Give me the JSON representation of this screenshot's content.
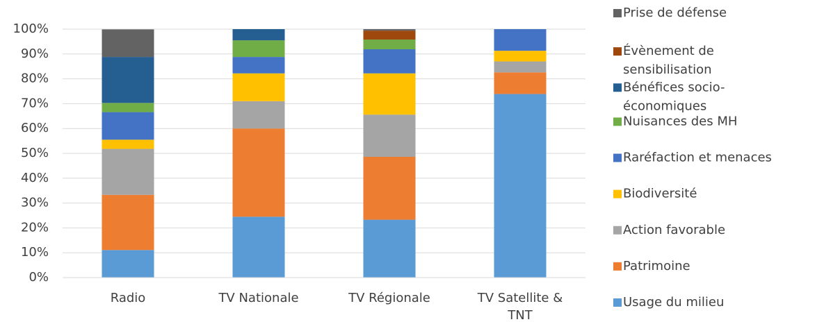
{
  "chart_data": {
    "type": "stacked_bar",
    "categories": [
      "Radio",
      "TV Nationale",
      "TV Régionale",
      "TV Satellite & TNT"
    ],
    "series": [
      {
        "name": "Usage du milieu",
        "color": "#5b9bd5",
        "values": [
          11.1,
          24.5,
          23.3,
          73.9
        ]
      },
      {
        "name": "Patrimoine",
        "color": "#ed7d31",
        "values": [
          22.2,
          35.5,
          25.3,
          8.7
        ]
      },
      {
        "name": "Action favorable",
        "color": "#a5a5a5",
        "values": [
          18.5,
          11,
          17,
          4.4
        ]
      },
      {
        "name": "Biodiversité",
        "color": "#ffc000",
        "values": [
          3.7,
          11.2,
          16.6,
          4.3
        ]
      },
      {
        "name": "Raréfaction et menaces",
        "color": "#4472c4",
        "values": [
          11.1,
          6.6,
          9.7,
          8.7
        ]
      },
      {
        "name": "Nuisances des MH",
        "color": "#70ad47",
        "values": [
          3.7,
          6.7,
          3.9,
          0
        ]
      },
      {
        "name": "Bénéfices socio-économiques",
        "color": "#255e91",
        "values": [
          18.5,
          4.5,
          0,
          0
        ]
      },
      {
        "name": "Évènement de sensibilisation",
        "color": "#9e480e",
        "values": [
          0,
          0,
          3.6,
          0
        ]
      },
      {
        "name": "Prise de défense",
        "color": "#636363",
        "values": [
          11.1,
          0,
          0.6,
          0
        ]
      }
    ],
    "ylim": [
      0,
      100
    ],
    "yticks": [
      {
        "value": 0,
        "label": "0%"
      },
      {
        "value": 10,
        "label": "10%"
      },
      {
        "value": 20,
        "label": "20%"
      },
      {
        "value": 30,
        "label": "30%"
      },
      {
        "value": 40,
        "label": "40%"
      },
      {
        "value": 50,
        "label": "50%"
      },
      {
        "value": 60,
        "label": "60%"
      },
      {
        "value": 70,
        "label": "70%"
      },
      {
        "value": 80,
        "label": "80%"
      },
      {
        "value": 90,
        "label": "90%"
      },
      {
        "value": 100,
        "label": "100%"
      }
    ],
    "grid": true,
    "legend": "right"
  }
}
